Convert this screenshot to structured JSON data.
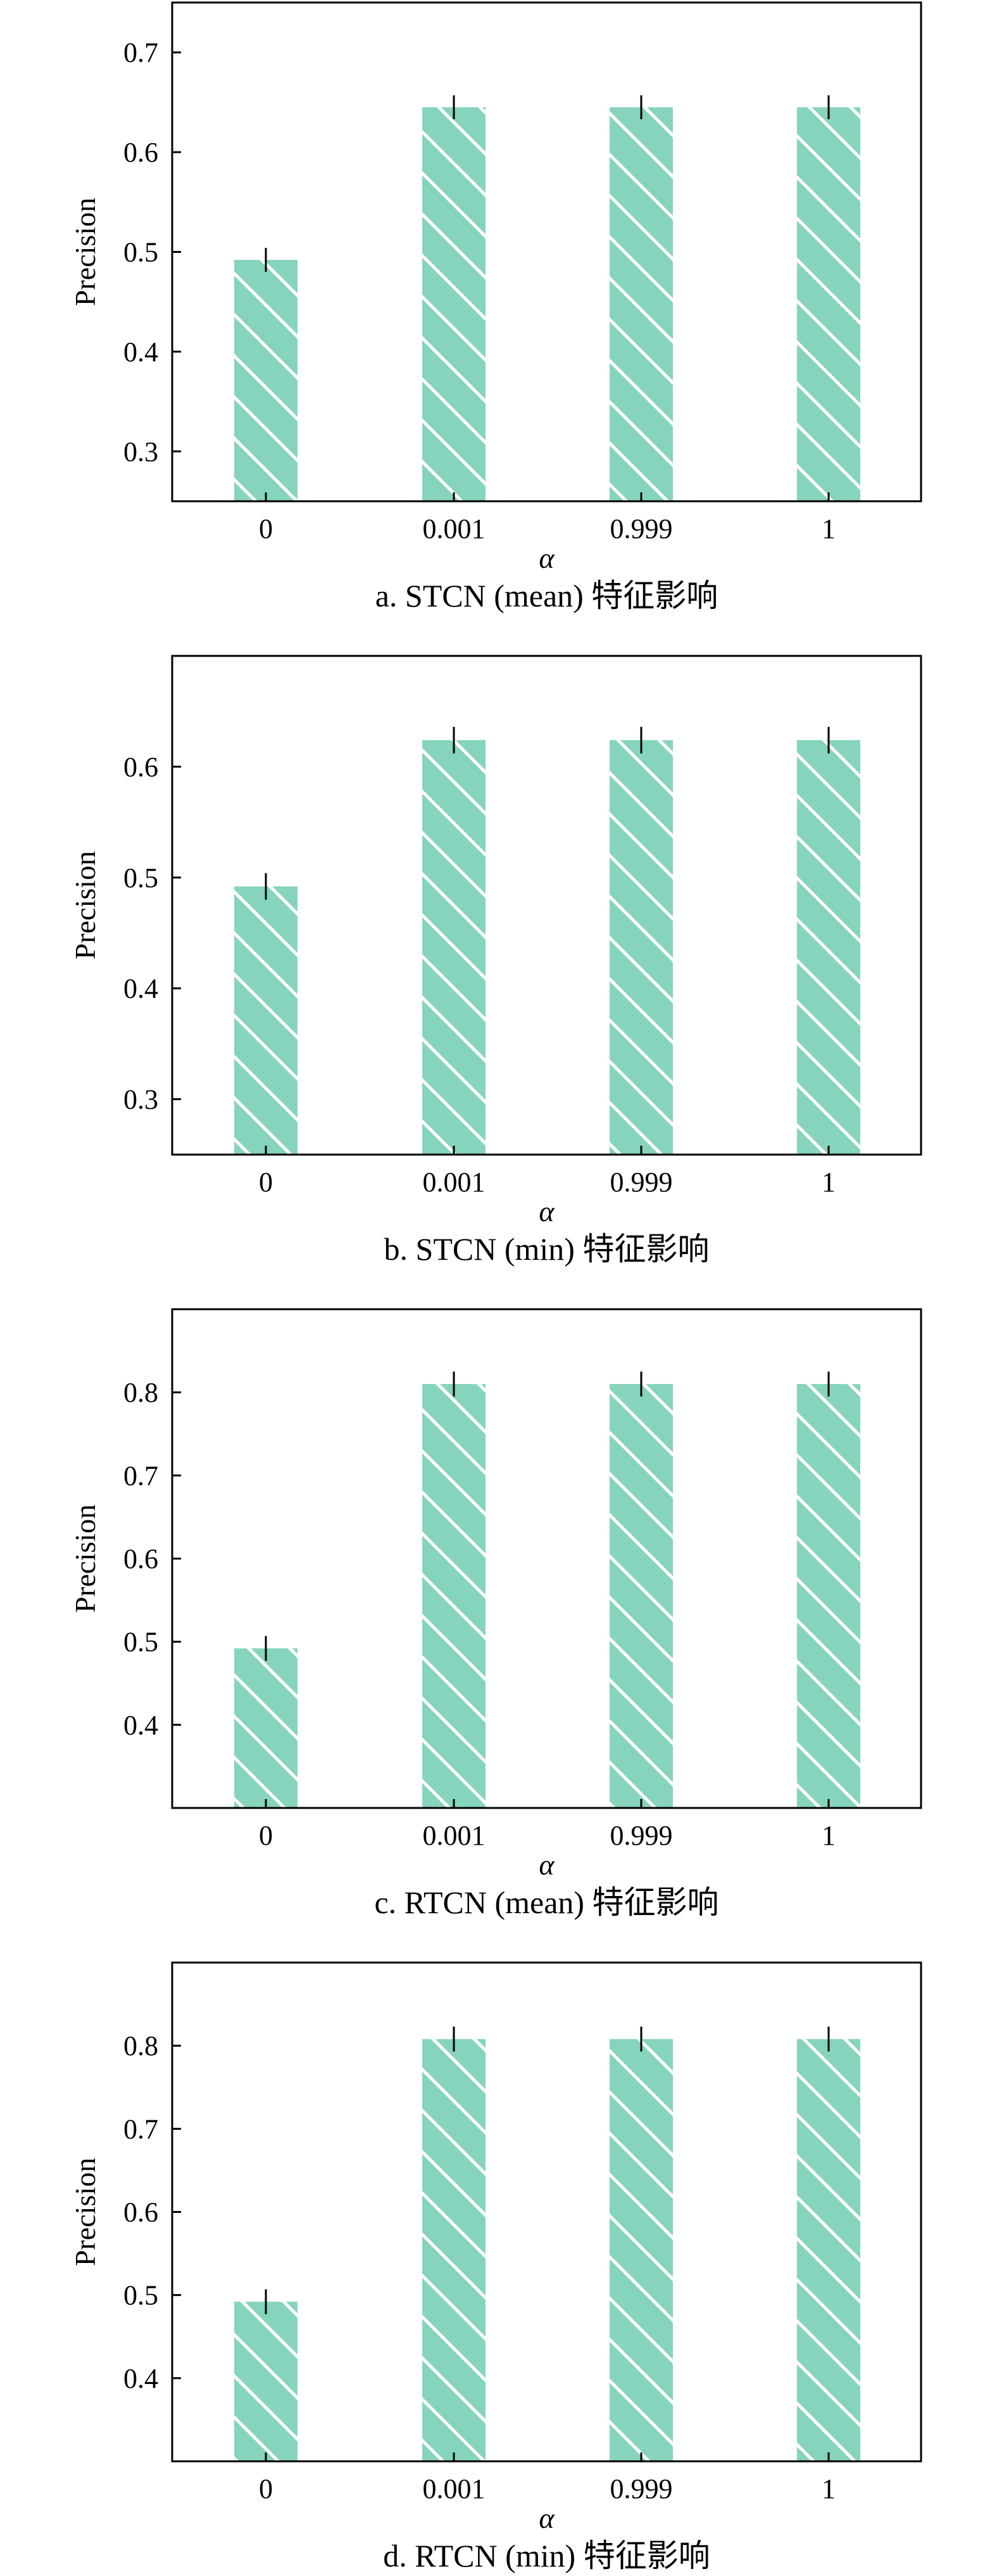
{
  "colors": {
    "bar_fill": "#86d4bd",
    "hatch": "#ffffff",
    "axis": "#000000"
  },
  "chart_data": [
    {
      "type": "bar",
      "categories": [
        "0",
        "0.001",
        "0.999",
        "1"
      ],
      "values": [
        0.492,
        0.645,
        0.645,
        0.645
      ],
      "errors": [
        0.012,
        0.012,
        0.012,
        0.012
      ],
      "xlabel": "α",
      "ylabel": "Precision",
      "ylim": [
        0.25,
        0.75
      ],
      "yticks": [
        0.3,
        0.4,
        0.5,
        0.6,
        0.7
      ],
      "ytick_labels": [
        "0.3",
        "0.4",
        "0.5",
        "0.6",
        "0.7"
      ],
      "caption": "a. STCN (mean) 特征影响",
      "grid": false
    },
    {
      "type": "bar",
      "categories": [
        "0",
        "0.001",
        "0.999",
        "1"
      ],
      "values": [
        0.492,
        0.624,
        0.624,
        0.624
      ],
      "errors": [
        0.012,
        0.012,
        0.012,
        0.012
      ],
      "xlabel": "α",
      "ylabel": "Precision",
      "ylim": [
        0.25,
        0.7
      ],
      "yticks": [
        0.3,
        0.4,
        0.5,
        0.6
      ],
      "ytick_labels": [
        "0.3",
        "0.4",
        "0.5",
        "0.6"
      ],
      "caption": "b. STCN (min) 特征影响",
      "grid": false
    },
    {
      "type": "bar",
      "categories": [
        "0",
        "0.001",
        "0.999",
        "1"
      ],
      "values": [
        0.492,
        0.81,
        0.81,
        0.81
      ],
      "errors": [
        0.015,
        0.015,
        0.015,
        0.015
      ],
      "xlabel": "α",
      "ylabel": "Precision",
      "ylim": [
        0.3,
        0.9
      ],
      "yticks": [
        0.4,
        0.5,
        0.6,
        0.7,
        0.8
      ],
      "ytick_labels": [
        "0.4",
        "0.5",
        "0.6",
        "0.7",
        "0.8"
      ],
      "caption": "c. RTCN (mean) 特征影响",
      "grid": false
    },
    {
      "type": "bar",
      "categories": [
        "0",
        "0.001",
        "0.999",
        "1"
      ],
      "values": [
        0.492,
        0.808,
        0.808,
        0.808
      ],
      "errors": [
        0.015,
        0.015,
        0.015,
        0.015
      ],
      "xlabel": "α",
      "ylabel": "Precision",
      "ylim": [
        0.3,
        0.9
      ],
      "yticks": [
        0.4,
        0.5,
        0.6,
        0.7,
        0.8
      ],
      "ytick_labels": [
        "0.4",
        "0.5",
        "0.6",
        "0.7",
        "0.8"
      ],
      "caption": "d. RTCN (min) 特征影响",
      "grid": false
    }
  ]
}
